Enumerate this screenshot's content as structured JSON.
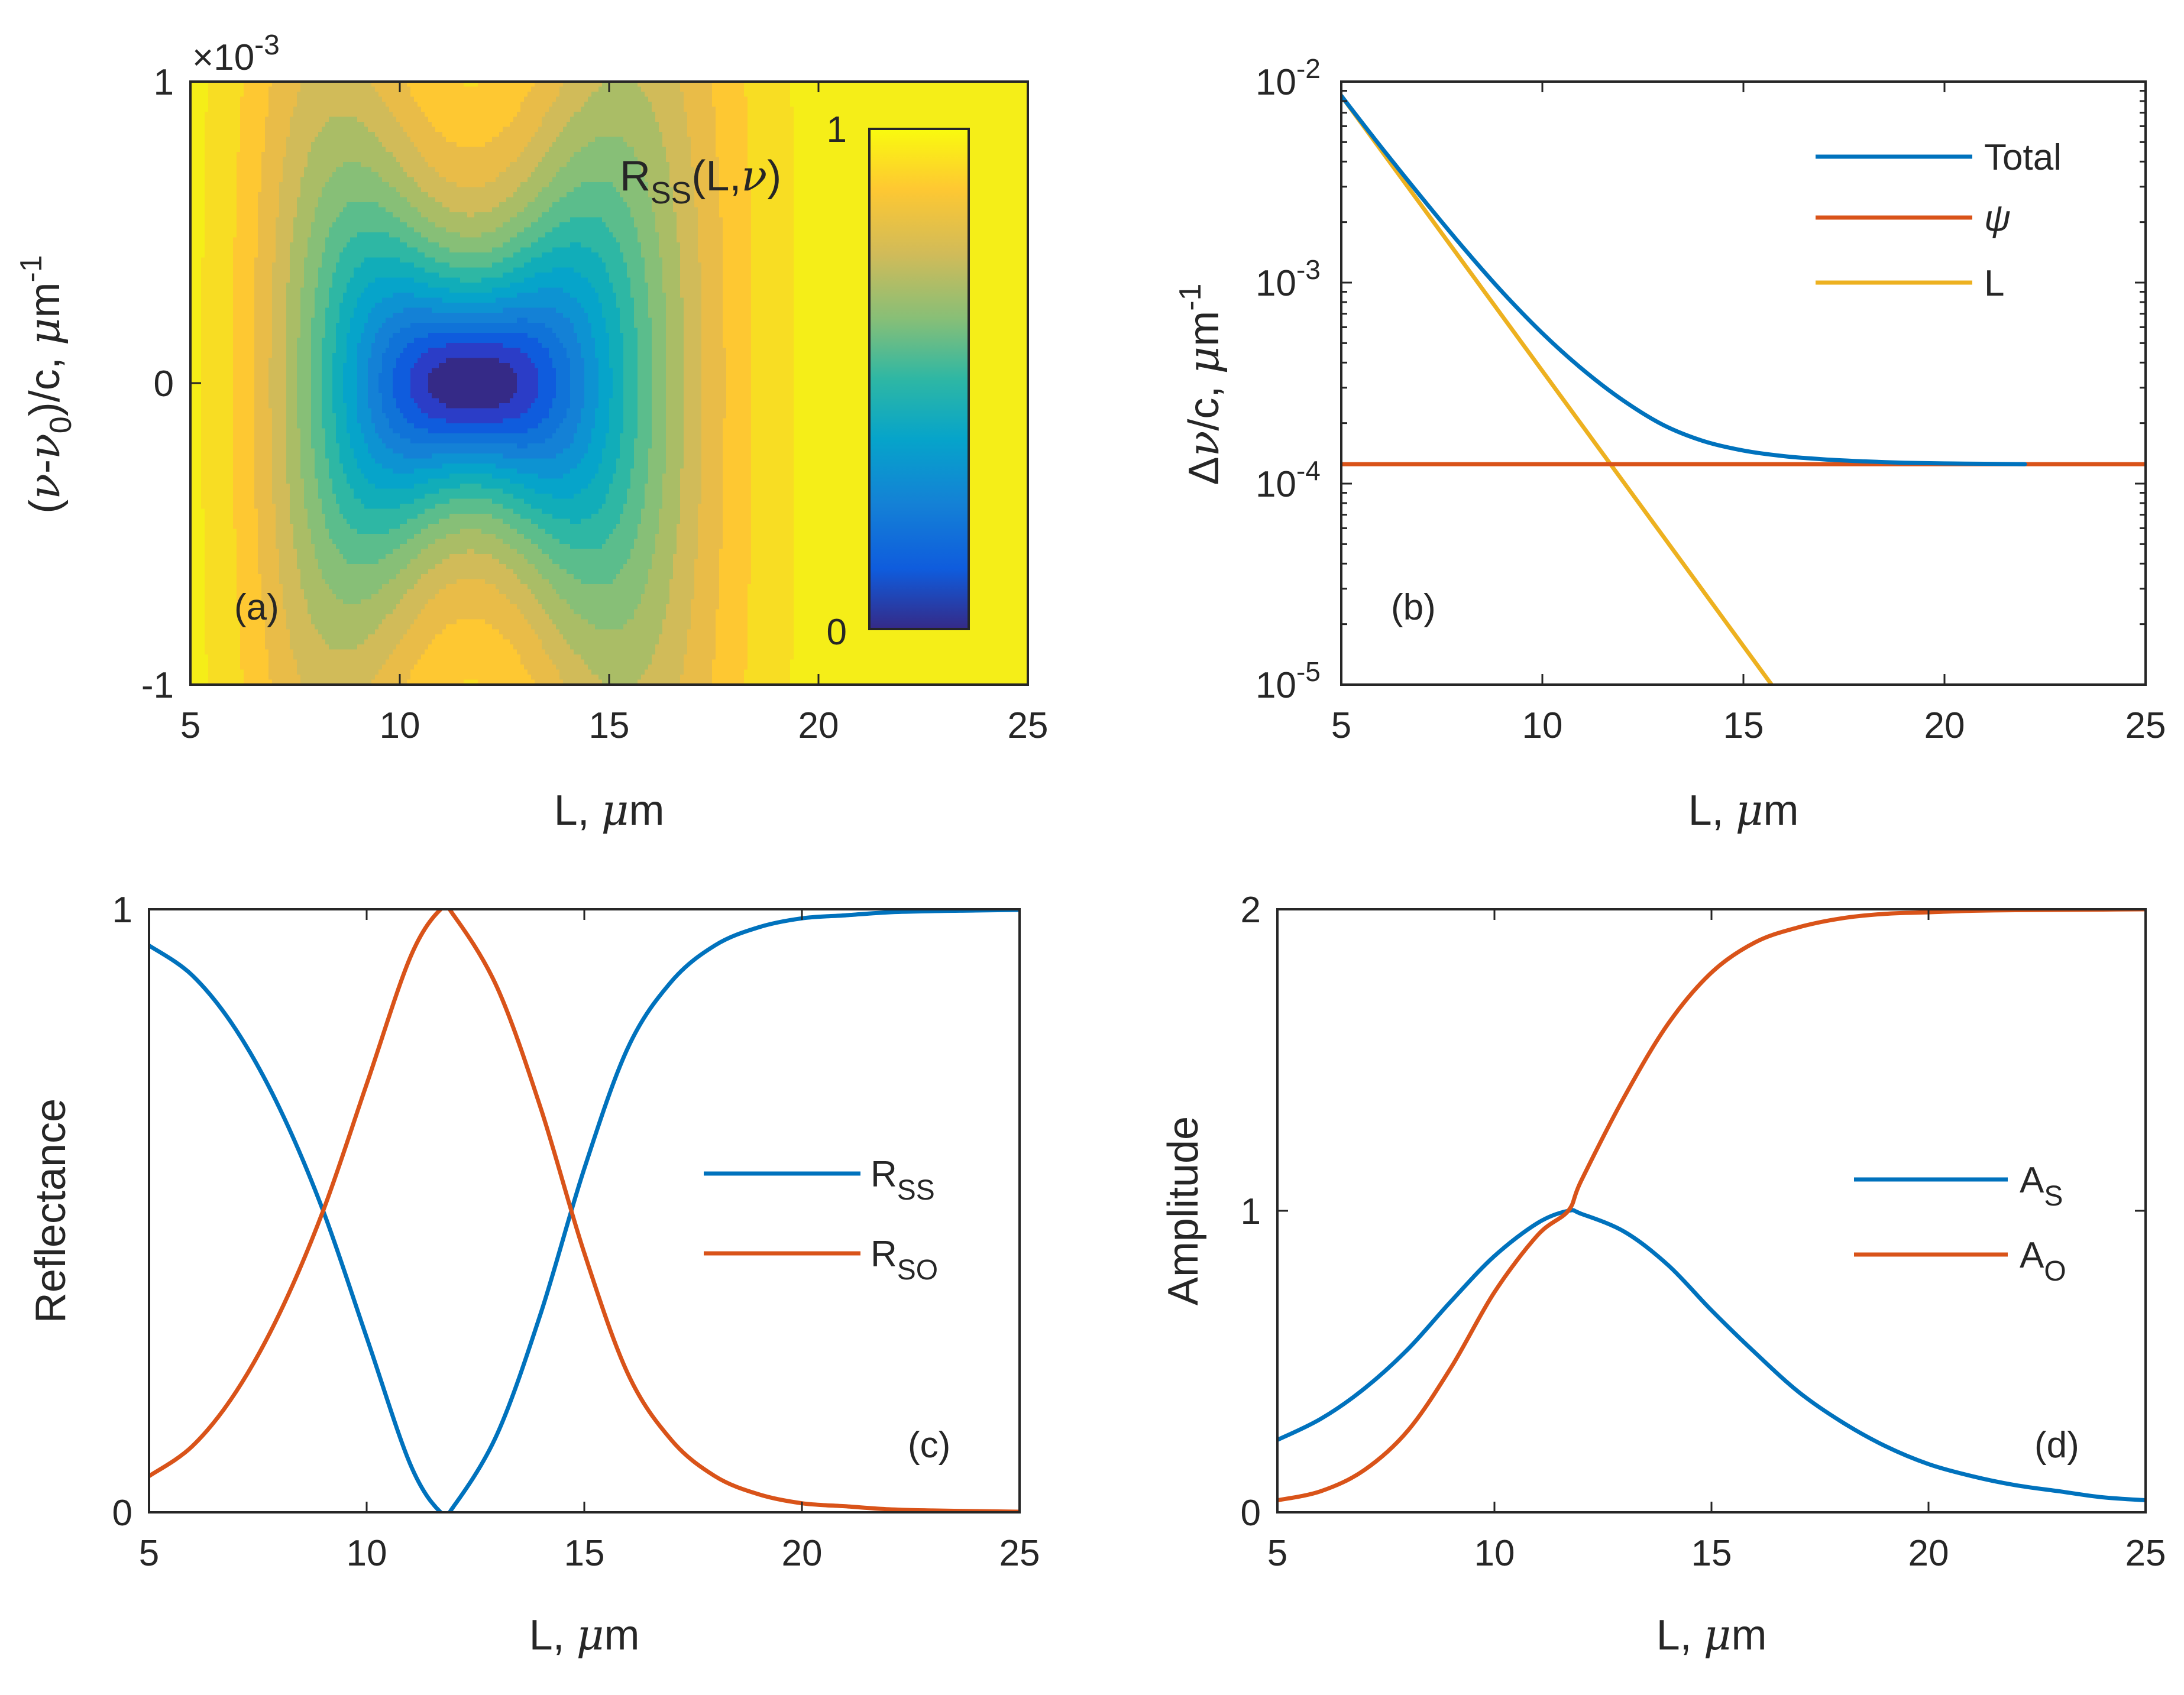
{
  "colors": {
    "blue": "#0072BD",
    "orange": "#D95319",
    "yellow": "#EDB120"
  },
  "chart_data": [
    {
      "id": "a",
      "type": "heatmap",
      "panel_label": "(a)",
      "title": "",
      "xlabel": "L, μm",
      "ylabel": "(ν-ν₀)/c, μm⁻¹",
      "ylabel_parts": {
        "pre": "(",
        "nu": "ν",
        "mid": "-",
        "nu0": "ν",
        "sub": "0",
        "post": ")/c, ",
        "mu": "μ",
        "m": "m",
        "sup": "-1"
      },
      "xlabel_parts": {
        "pre": "L, ",
        "mu": "μ",
        "post": "m"
      },
      "xlim": [
        5,
        25
      ],
      "ylim": [
        -1,
        1
      ],
      "y_exponent": "×10",
      "y_exponent_power": "-3",
      "xticks": [
        "5",
        "10",
        "15",
        "20",
        "25"
      ],
      "yticks": [
        "-1",
        "0",
        "1"
      ],
      "colorbar": {
        "label_main": "R",
        "label_sub": "SS",
        "label_args": "(L,",
        "label_nu": "ν",
        "label_close": ")",
        "tick_top": "1",
        "tick_bottom": "0",
        "range": [
          0,
          1
        ]
      },
      "model": {
        "L0": 11.7,
        "width": 2.5,
        "psi_linewidth": 0.000125,
        "nu_scale": 0.001
      }
    },
    {
      "id": "b",
      "type": "line",
      "panel_label": "(b)",
      "xlabel": "L, μm",
      "xlabel_parts": {
        "pre": "L, ",
        "mu": "μ",
        "post": "m"
      },
      "ylabel_parts": {
        "delta": "Δ",
        "nu": "ν",
        "post": "/c, ",
        "mu": "μ",
        "m": "m",
        "sup": "-1"
      },
      "xlim": [
        5,
        25
      ],
      "ylim": [
        1e-05,
        0.01
      ],
      "yscale": "log",
      "xticks": [
        "5",
        "10",
        "15",
        "20",
        "25"
      ],
      "yticks": [
        {
          "base": "10",
          "exp": "-2"
        },
        {
          "base": "10",
          "exp": "-3"
        },
        {
          "base": "10",
          "exp": "-4"
        },
        {
          "base": "10",
          "exp": "-5"
        }
      ],
      "legend": [
        "Total",
        "ψ",
        "L"
      ],
      "series": [
        {
          "name": "Total",
          "x": [
            5,
            6,
            7,
            8,
            9,
            10,
            11,
            12,
            13,
            14,
            15,
            16,
            17,
            18,
            19,
            20,
            21,
            22
          ],
          "values": [
            0.0085,
            0.0047,
            0.00265,
            0.00152,
            0.0009,
            0.00056,
            0.00037,
            0.00026,
            0.000196,
            0.000163,
            0.000146,
            0.000137,
            0.000132,
            0.000129,
            0.000127,
            0.000126,
            0.0001255,
            0.000125
          ]
        },
        {
          "name": "ψ",
          "x": [
            5,
            25
          ],
          "values": [
            0.000125,
            0.000125
          ]
        },
        {
          "name": "L",
          "x": [
            5,
            15.7
          ],
          "values": [
            0.0085,
            1e-05
          ]
        }
      ]
    },
    {
      "id": "c",
      "type": "line",
      "panel_label": "(c)",
      "xlabel": "L, μm",
      "xlabel_parts": {
        "pre": "L, ",
        "mu": "μ",
        "post": "m"
      },
      "ylabel": "Reflectance",
      "xlim": [
        5,
        25
      ],
      "ylim": [
        0,
        1
      ],
      "xticks": [
        "5",
        "10",
        "15",
        "20",
        "25"
      ],
      "yticks": [
        "0",
        "1"
      ],
      "legend": [
        {
          "main": "R",
          "sub": "SS"
        },
        {
          "main": "R",
          "sub": "SO"
        }
      ],
      "series": [
        {
          "name": "RSS",
          "x": [
            5,
            6,
            7,
            8,
            9,
            10,
            11,
            11.7,
            12,
            13,
            14,
            15,
            16,
            17,
            18,
            19,
            20,
            21,
            22,
            23,
            24,
            25
          ],
          "values": [
            0.94,
            0.89,
            0.8,
            0.67,
            0.5,
            0.29,
            0.08,
            0.0,
            0.01,
            0.13,
            0.33,
            0.57,
            0.77,
            0.88,
            0.94,
            0.97,
            0.985,
            0.99,
            0.995,
            0.997,
            0.998,
            0.999
          ]
        },
        {
          "name": "RSO",
          "x": [
            5,
            6,
            7,
            8,
            9,
            10,
            11,
            11.7,
            12,
            13,
            14,
            15,
            16,
            17,
            18,
            19,
            20,
            21,
            22,
            23,
            24,
            25
          ],
          "values": [
            0.06,
            0.11,
            0.2,
            0.33,
            0.5,
            0.71,
            0.92,
            1.0,
            0.99,
            0.87,
            0.67,
            0.43,
            0.23,
            0.12,
            0.06,
            0.03,
            0.015,
            0.01,
            0.005,
            0.003,
            0.002,
            0.001
          ]
        }
      ]
    },
    {
      "id": "d",
      "type": "line",
      "panel_label": "(d)",
      "xlabel": "L, μm",
      "xlabel_parts": {
        "pre": "L, ",
        "mu": "μ",
        "post": "m"
      },
      "ylabel": "Amplitude",
      "xlim": [
        5,
        25
      ],
      "ylim": [
        0,
        2
      ],
      "xticks": [
        "5",
        "10",
        "15",
        "20",
        "25"
      ],
      "yticks": [
        "0",
        "1",
        "2"
      ],
      "legend": [
        {
          "main": "A",
          "sub": "S"
        },
        {
          "main": "A",
          "sub": "O"
        }
      ],
      "series": [
        {
          "name": "AS",
          "x": [
            5,
            6,
            7,
            8,
            9,
            10,
            11,
            11.7,
            12,
            13,
            14,
            15,
            16,
            17,
            18,
            19,
            20,
            21,
            22,
            23,
            24,
            25
          ],
          "values": [
            0.24,
            0.31,
            0.41,
            0.54,
            0.7,
            0.85,
            0.96,
            1.0,
            0.99,
            0.93,
            0.82,
            0.67,
            0.53,
            0.4,
            0.3,
            0.22,
            0.16,
            0.12,
            0.09,
            0.07,
            0.05,
            0.04
          ]
        },
        {
          "name": "AO",
          "x": [
            5,
            6,
            7,
            8,
            9,
            10,
            11,
            11.7,
            12,
            13,
            14,
            15,
            16,
            17,
            18,
            19,
            20,
            21,
            22,
            23,
            24,
            25
          ],
          "values": [
            0.04,
            0.07,
            0.14,
            0.27,
            0.48,
            0.73,
            0.92,
            1.0,
            1.1,
            1.38,
            1.62,
            1.79,
            1.89,
            1.94,
            1.97,
            1.985,
            1.99,
            1.995,
            1.997,
            1.998,
            1.999,
            2.0
          ]
        }
      ]
    }
  ]
}
